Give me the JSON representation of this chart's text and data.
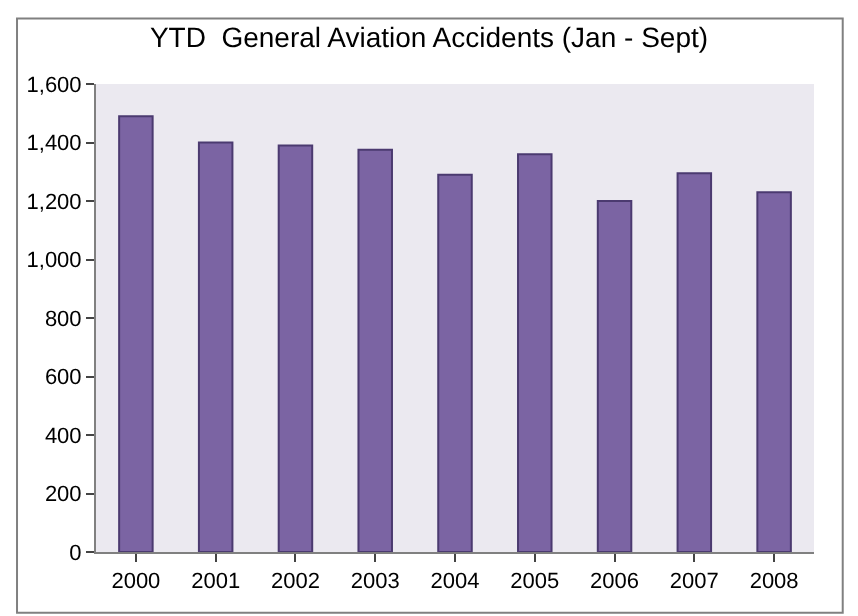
{
  "chart_data": {
    "type": "bar",
    "title": "YTD  General Aviation Accidents (Jan - Sept)",
    "categories": [
      "2000",
      "2001",
      "2002",
      "2003",
      "2004",
      "2005",
      "2006",
      "2007",
      "2008"
    ],
    "values": [
      1490,
      1400,
      1390,
      1375,
      1290,
      1360,
      1200,
      1295,
      1230
    ],
    "color": "#7b64a3",
    "ylim": [
      0,
      1600
    ],
    "yticks": [
      {
        "value": 0,
        "label": "0"
      },
      {
        "value": 200,
        "label": "200"
      },
      {
        "value": 400,
        "label": "400"
      },
      {
        "value": 600,
        "label": "600"
      },
      {
        "value": 800,
        "label": "800"
      },
      {
        "value": 1000,
        "label": "1,000"
      },
      {
        "value": 1200,
        "label": "1,200"
      },
      {
        "value": 1400,
        "label": "1,400"
      },
      {
        "value": 1600,
        "label": "1,600"
      }
    ],
    "tick_labels": "xy"
  }
}
